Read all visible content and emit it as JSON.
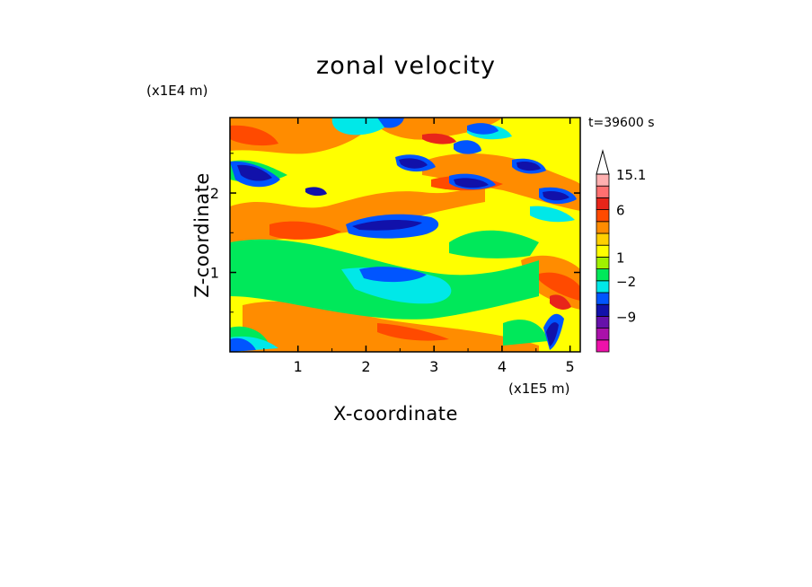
{
  "chart_data": {
    "type": "heatmap",
    "title": "zonal velocity",
    "xlabel": "X-coordinate",
    "ylabel": "Z-coordinate",
    "x_multiplier": "(x1E5 m)",
    "z_multiplier": "(x1E4 m)",
    "time_label": "t=39600 s",
    "x_range": [
      0,
      5.15
    ],
    "z_range": [
      0,
      2.95
    ],
    "x_ticks": [
      1,
      2,
      3,
      4,
      5
    ],
    "z_ticks": [
      1,
      2
    ],
    "colorbar": {
      "labeled_ticks": [
        "15.1",
        "6",
        "1",
        "−2",
        "−9"
      ],
      "colors": [
        "#ee11aa",
        "#aa11aa",
        "#6611aa",
        "#1111aa",
        "#0055ff",
        "#00e8e8",
        "#00e85a",
        "#a0f000",
        "#ffff00",
        "#ffd000",
        "#ff8c00",
        "#ff4a00",
        "#e8251a",
        "#ff7070",
        "#ffb0b0"
      ],
      "extension": "top"
    }
  }
}
